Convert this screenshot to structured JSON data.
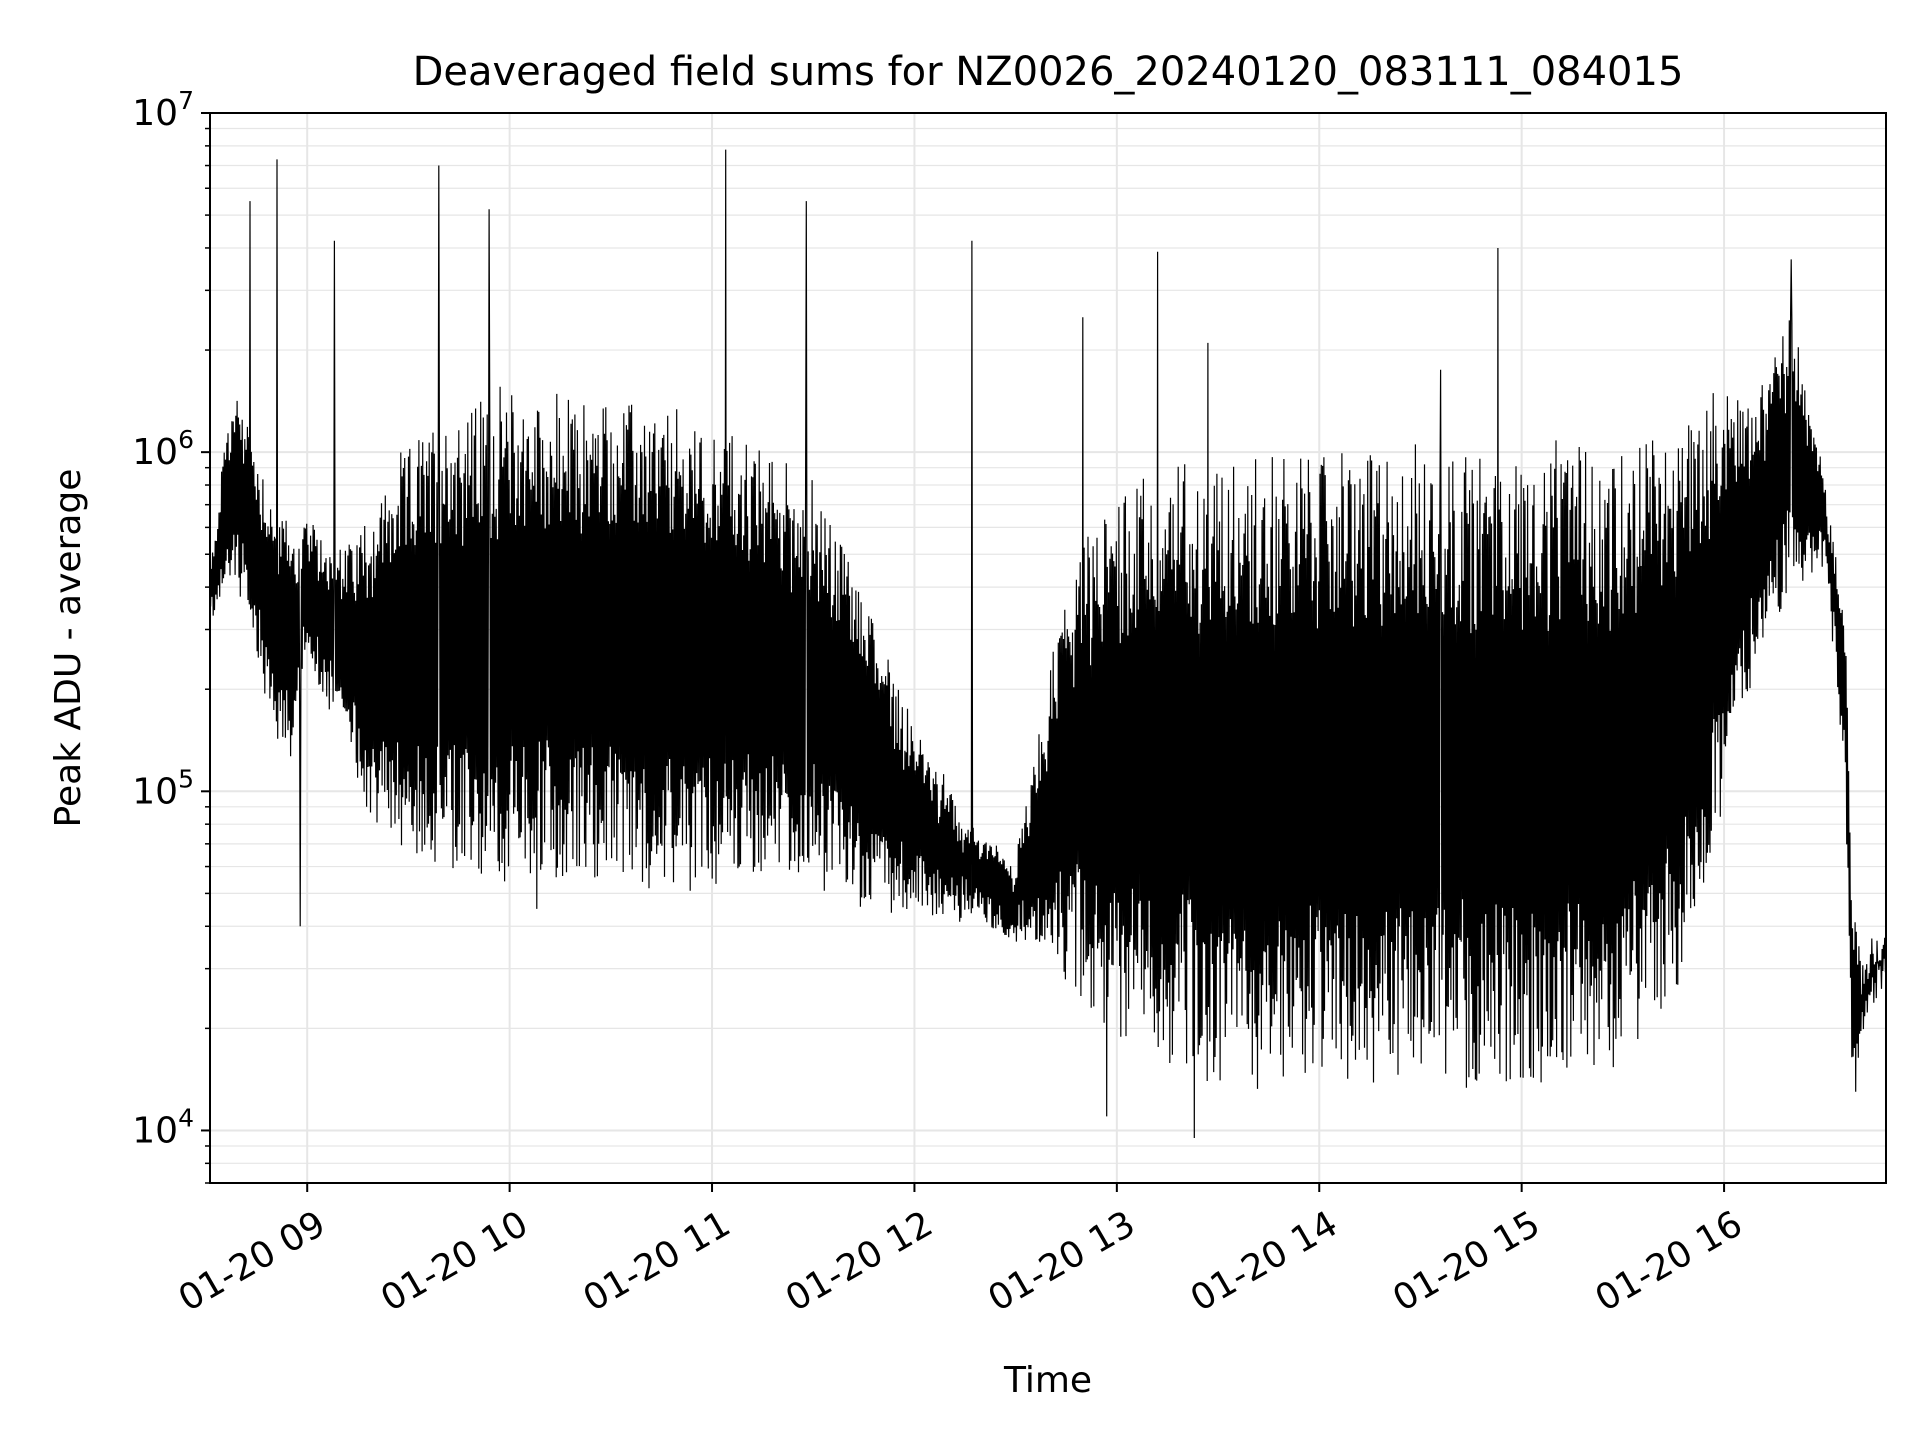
{
  "chart_data": {
    "type": "line",
    "title": "Deaveraged field sums for NZ0026_20240120_083111_084015",
    "xlabel": "Time",
    "ylabel": "Peak ADU - average",
    "y_scale": "log",
    "ylim": [
      7000,
      10000000
    ],
    "xlim": [
      "01-20 08:31:11",
      "01-20 16:48:00"
    ],
    "grid": true,
    "line_color": "#000000",
    "grid_color": "#e6e6e6",
    "y_ticks": [
      {
        "value": 10000,
        "base": "10",
        "exp": "4"
      },
      {
        "value": 100000,
        "base": "10",
        "exp": "5"
      },
      {
        "value": 1000000,
        "base": "10",
        "exp": "6"
      },
      {
        "value": 10000000,
        "base": "10",
        "exp": "7"
      }
    ],
    "x_ticks": [
      {
        "value": "01-20 09:00",
        "label": "01-20 09"
      },
      {
        "value": "01-20 10:00",
        "label": "01-20 10"
      },
      {
        "value": "01-20 11:00",
        "label": "01-20 11"
      },
      {
        "value": "01-20 12:00",
        "label": "01-20 12"
      },
      {
        "value": "01-20 13:00",
        "label": "01-20 13"
      },
      {
        "value": "01-20 14:00",
        "label": "01-20 14"
      },
      {
        "value": "01-20 15:00",
        "label": "01-20 15"
      },
      {
        "value": "01-20 16:00",
        "label": "01-20 16"
      }
    ],
    "series": [
      {
        "x": [
          "01-20 08:31",
          "01-20 08:36",
          "01-20 08:40",
          "01-20 08:45",
          "01-20 08:50",
          "01-20 08:55",
          "01-20 09:00",
          "01-20 09:10",
          "01-20 09:20",
          "01-20 09:30",
          "01-20 09:40",
          "01-20 09:50",
          "01-20 10:00",
          "01-20 10:15",
          "01-20 10:30",
          "01-20 10:45",
          "01-20 11:00",
          "01-20 11:15",
          "01-20 11:30",
          "01-20 11:45",
          "01-20 12:00",
          "01-20 12:15",
          "01-20 12:30",
          "01-20 12:45",
          "01-20 13:00",
          "01-20 13:15",
          "01-20 13:30",
          "01-20 13:45",
          "01-20 14:00",
          "01-20 14:15",
          "01-20 14:30",
          "01-20 14:45",
          "01-20 15:00",
          "01-20 15:15",
          "01-20 15:30",
          "01-20 15:45",
          "01-20 16:00",
          "01-20 16:10",
          "01-20 16:20",
          "01-20 16:30",
          "01-20 16:36",
          "01-20 16:38",
          "01-20 16:41",
          "01-20 16:44",
          "01-20 16:48"
        ],
        "low": [
          300000,
          450000,
          380000,
          250000,
          150000,
          120000,
          250000,
          150000,
          80000,
          70000,
          60000,
          55000,
          55000,
          55000,
          55000,
          55000,
          55000,
          55000,
          55000,
          45000,
          45000,
          45000,
          38000,
          30000,
          20000,
          16000,
          14000,
          14000,
          15000,
          14000,
          14000,
          14000,
          14000,
          14000,
          15000,
          25000,
          90000,
          250000,
          400000,
          500000,
          100000,
          14000,
          18000,
          25000,
          30000
        ],
        "high": [
          400000,
          1200000,
          1500000,
          1000000,
          700000,
          600000,
          600000,
          500000,
          700000,
          1000000,
          1300000,
          1400000,
          1500000,
          1400000,
          1400000,
          1300000,
          1200000,
          1000000,
          800000,
          400000,
          150000,
          80000,
          60000,
          400000,
          800000,
          900000,
          950000,
          950000,
          1000000,
          1000000,
          1000000,
          1000000,
          1000000,
          1000000,
          1000000,
          1200000,
          1500000,
          1500000,
          2500000,
          800000,
          300000,
          50000,
          30000,
          35000,
          35000
        ]
      }
    ],
    "spikes": [
      {
        "x": "01-20 08:43",
        "y": 5500000
      },
      {
        "x": "01-20 08:51",
        "y": 7300000
      },
      {
        "x": "01-20 09:08",
        "y": 4200000
      },
      {
        "x": "01-20 09:39",
        "y": 7000000
      },
      {
        "x": "01-20 09:54",
        "y": 5200000
      },
      {
        "x": "01-20 11:04",
        "y": 7800000
      },
      {
        "x": "01-20 11:28",
        "y": 5500000
      },
      {
        "x": "01-20 12:17",
        "y": 4200000
      },
      {
        "x": "01-20 13:12",
        "y": 3900000
      },
      {
        "x": "01-20 14:53",
        "y": 4000000
      },
      {
        "x": "01-20 16:20",
        "y": 3700000
      },
      {
        "x": "01-20 13:27",
        "y": 2100000
      },
      {
        "x": "01-20 12:50",
        "y": 2500000
      },
      {
        "x": "01-20 14:36",
        "y": 1750000
      }
    ],
    "dips": [
      {
        "x": "01-20 08:58",
        "y": 40000
      },
      {
        "x": "01-20 10:08",
        "y": 45000
      },
      {
        "x": "01-20 12:57",
        "y": 11000
      },
      {
        "x": "01-20 13:23",
        "y": 9500
      },
      {
        "x": "01-20 16:39",
        "y": 13000
      }
    ]
  }
}
